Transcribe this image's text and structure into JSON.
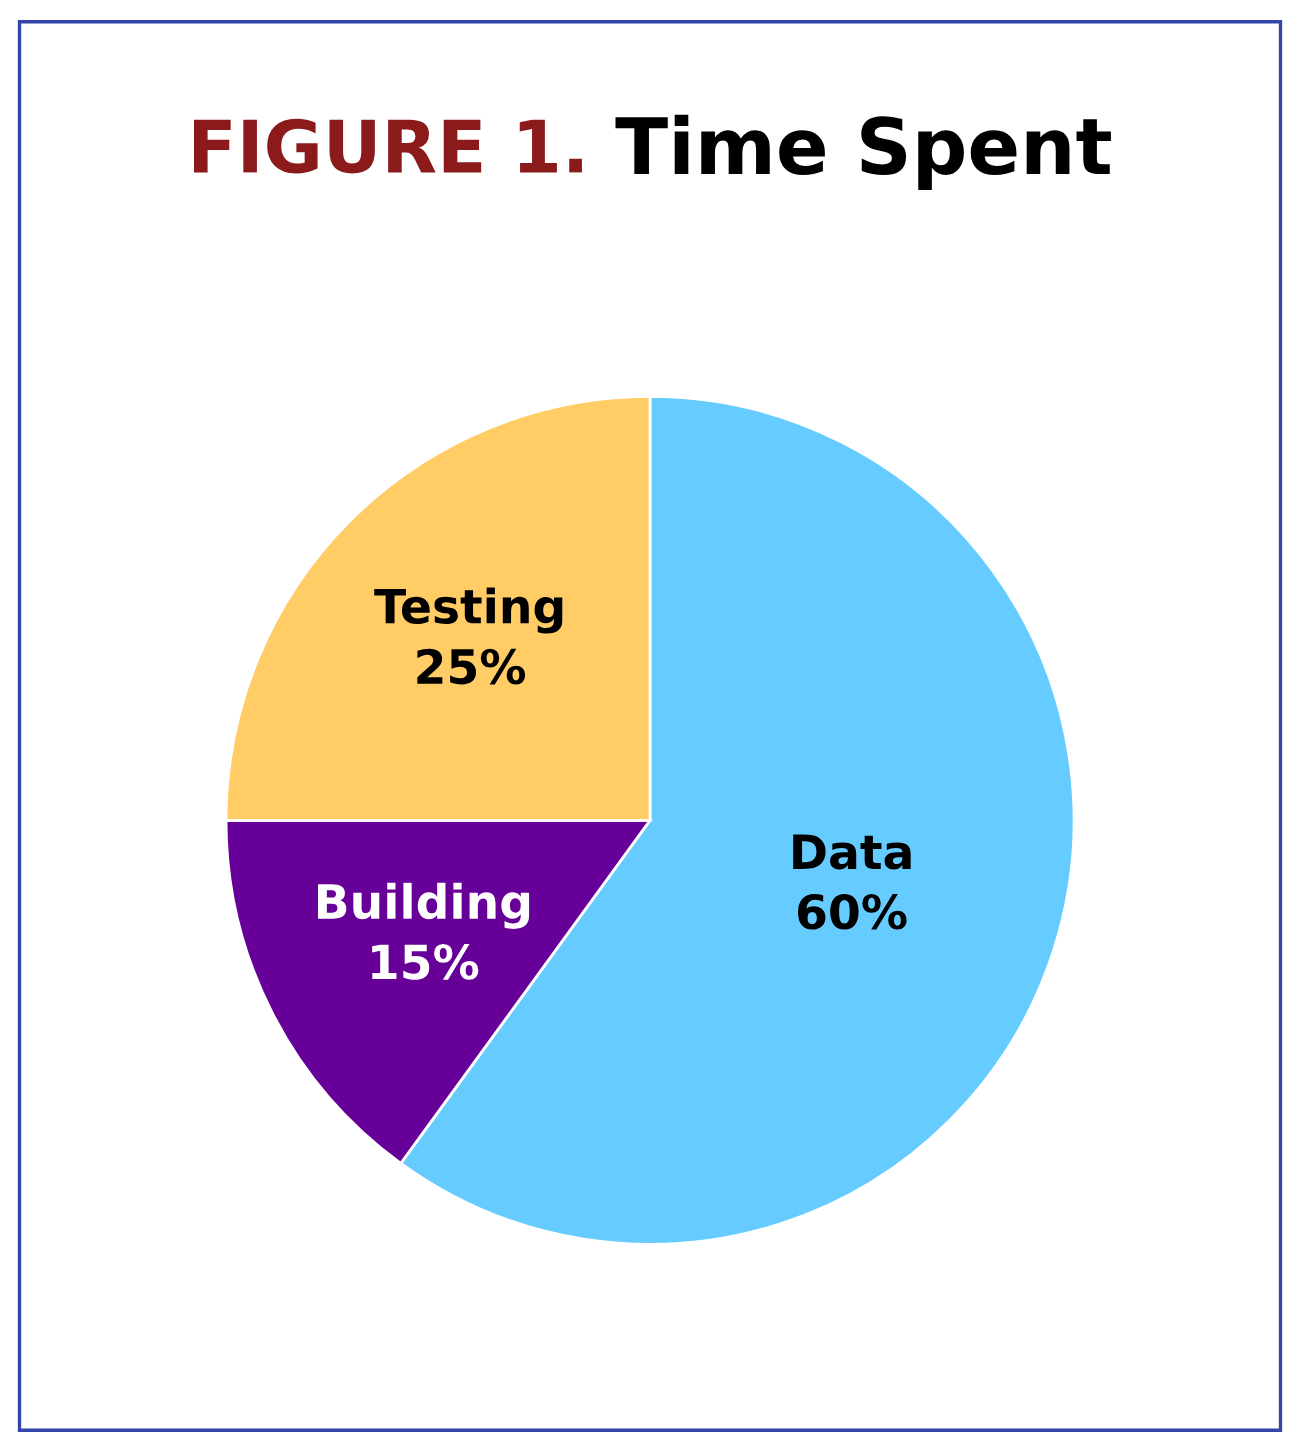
{
  "chart_data": {
    "type": "pie",
    "title": "FIGURE 1.",
    "subtitle": "Time Spent",
    "categories": [
      "Data",
      "Building",
      "Testing"
    ],
    "values": [
      60,
      15,
      25
    ],
    "colors": [
      "#66ccff",
      "#660099",
      "#ffcc66"
    ],
    "value_labels": [
      "60%",
      "15%",
      "25%"
    ]
  }
}
